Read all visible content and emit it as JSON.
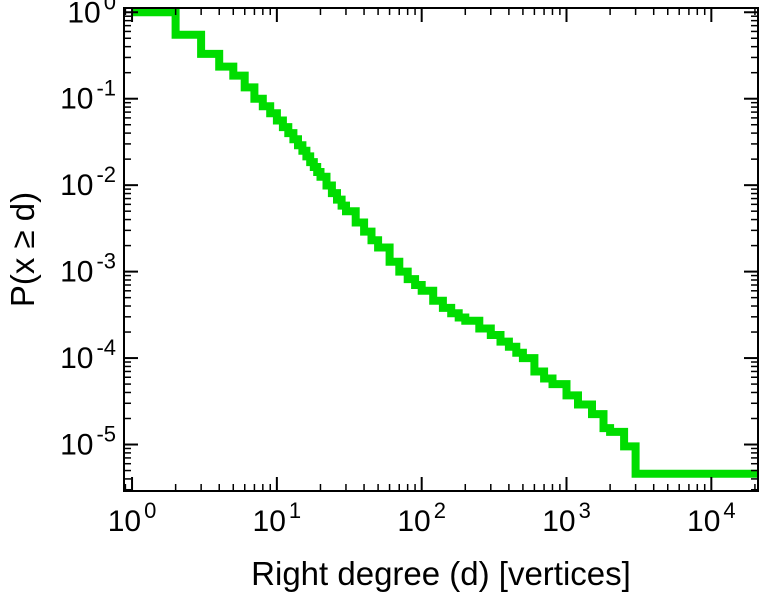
{
  "page": {
    "title": "",
    "background_color": "#ffffff"
  },
  "chart_data": {
    "type": "line",
    "subtype": "step-ccdf",
    "title": "",
    "xlabel": "Right degree (d) [vertices]",
    "ylabel": "P(x ≥ d)",
    "x_scale": "log",
    "y_scale": "log",
    "xlim": [
      0.88,
      21000
    ],
    "ylim": [
      2.9e-06,
      1.12
    ],
    "x_major_ticks": [
      1,
      10,
      100,
      1000,
      10000
    ],
    "y_major_ticks": [
      1,
      0.1,
      0.01,
      0.001,
      0.0001,
      1e-05
    ],
    "tick_label_base": "10",
    "grid": false,
    "legend": "none",
    "line_color": "#00dd00",
    "axis_color": "#000000",
    "line_width": 8,
    "points": [
      [
        1,
        1.0
      ],
      [
        2,
        0.55
      ],
      [
        3,
        0.33
      ],
      [
        4,
        0.235
      ],
      [
        5,
        0.185
      ],
      [
        6,
        0.135
      ],
      [
        7,
        0.1
      ],
      [
        8,
        0.082
      ],
      [
        9,
        0.068
      ],
      [
        10,
        0.056
      ],
      [
        11,
        0.047
      ],
      [
        12,
        0.04
      ],
      [
        13,
        0.034
      ],
      [
        14,
        0.029
      ],
      [
        15,
        0.025
      ],
      [
        16,
        0.0215
      ],
      [
        17,
        0.0185
      ],
      [
        18,
        0.0162
      ],
      [
        19,
        0.0142
      ],
      [
        20,
        0.0125
      ],
      [
        22,
        0.0099
      ],
      [
        24,
        0.0081
      ],
      [
        26,
        0.0068
      ],
      [
        28,
        0.0058
      ],
      [
        30,
        0.005
      ],
      [
        35,
        0.0037
      ],
      [
        40,
        0.0029
      ],
      [
        45,
        0.0023
      ],
      [
        50,
        0.0019
      ],
      [
        60,
        0.0013
      ],
      [
        70,
        0.001
      ],
      [
        80,
        0.00082
      ],
      [
        90,
        0.0007
      ],
      [
        100,
        0.0006
      ],
      [
        120,
        0.00046
      ],
      [
        140,
        0.00038
      ],
      [
        160,
        0.00033
      ],
      [
        180,
        0.000295
      ],
      [
        200,
        0.00027
      ],
      [
        250,
        0.00022
      ],
      [
        300,
        0.000185
      ],
      [
        350,
        0.000155
      ],
      [
        400,
        0.000135
      ],
      [
        450,
        0.000115
      ],
      [
        500,
        0.0001
      ],
      [
        600,
        7e-05
      ],
      [
        700,
        5.8e-05
      ],
      [
        800,
        5e-05
      ],
      [
        1000,
        3.7e-05
      ],
      [
        1200,
        2.9e-05
      ],
      [
        1500,
        2.25e-05
      ],
      [
        1800,
        1.55e-05
      ],
      [
        2000,
        1.4e-05
      ],
      [
        2500,
        9.5e-06
      ],
      [
        3000,
        4.6e-06
      ],
      [
        21000,
        4.6e-06
      ]
    ]
  }
}
